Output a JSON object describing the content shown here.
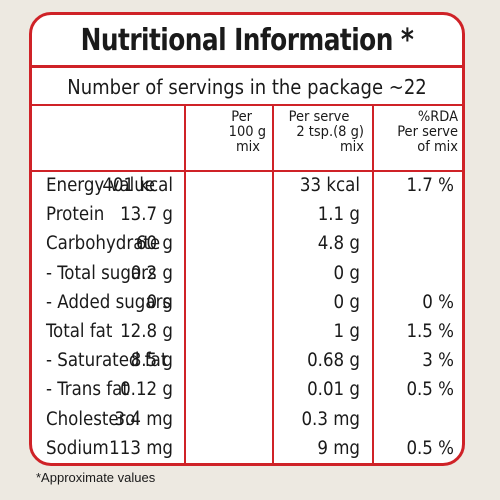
{
  "title": "Nutritional Information *",
  "servings_line": "Number of servings in the package ~22",
  "columns": [
    {
      "lines": [
        "Per",
        "100 g",
        "mix"
      ]
    },
    {
      "lines": [
        "Per serve",
        "2 tsp.(8 g)",
        "mix"
      ]
    },
    {
      "lines": [
        "%RDA",
        "Per serve",
        "of mix"
      ]
    }
  ],
  "rows": [
    {
      "label": "Energy value",
      "per100": "401 kcal",
      "perServe": "33 kcal",
      "rda": "1.7 %"
    },
    {
      "label": "Protein",
      "per100": "13.7 g",
      "perServe": "1.1 g",
      "rda": ""
    },
    {
      "label": "Carbohydrate",
      "per100": "60 g",
      "perServe": "4.8 g",
      "rda": ""
    },
    {
      "label": "- Total sugars",
      "per100": "0.2 g",
      "perServe": "0 g",
      "rda": ""
    },
    {
      "label": "- Added sugars",
      "per100": "0 g",
      "perServe": "0 g",
      "rda": "0 %"
    },
    {
      "label": "Total fat",
      "per100": "12.8 g",
      "perServe": "1 g",
      "rda": "1.5 %"
    },
    {
      "label": "- Saturated fat",
      "per100": "8.5 g",
      "perServe": "0.68 g",
      "rda": "3 %"
    },
    {
      "label": "- Trans fat",
      "per100": "0.12 g",
      "perServe": "0.01 g",
      "rda": "0.5 %"
    },
    {
      "label": "Cholesterol",
      "per100": "3.4 mg",
      "perServe": "0.3 mg",
      "rda": ""
    },
    {
      "label": "Sodium",
      "per100": "113 mg",
      "perServe": "9 mg",
      "rda": "0.5 %"
    }
  ],
  "footnote": "*Approximate values",
  "colors": {
    "border": "#cf2227",
    "background": "#ede9e1"
  }
}
